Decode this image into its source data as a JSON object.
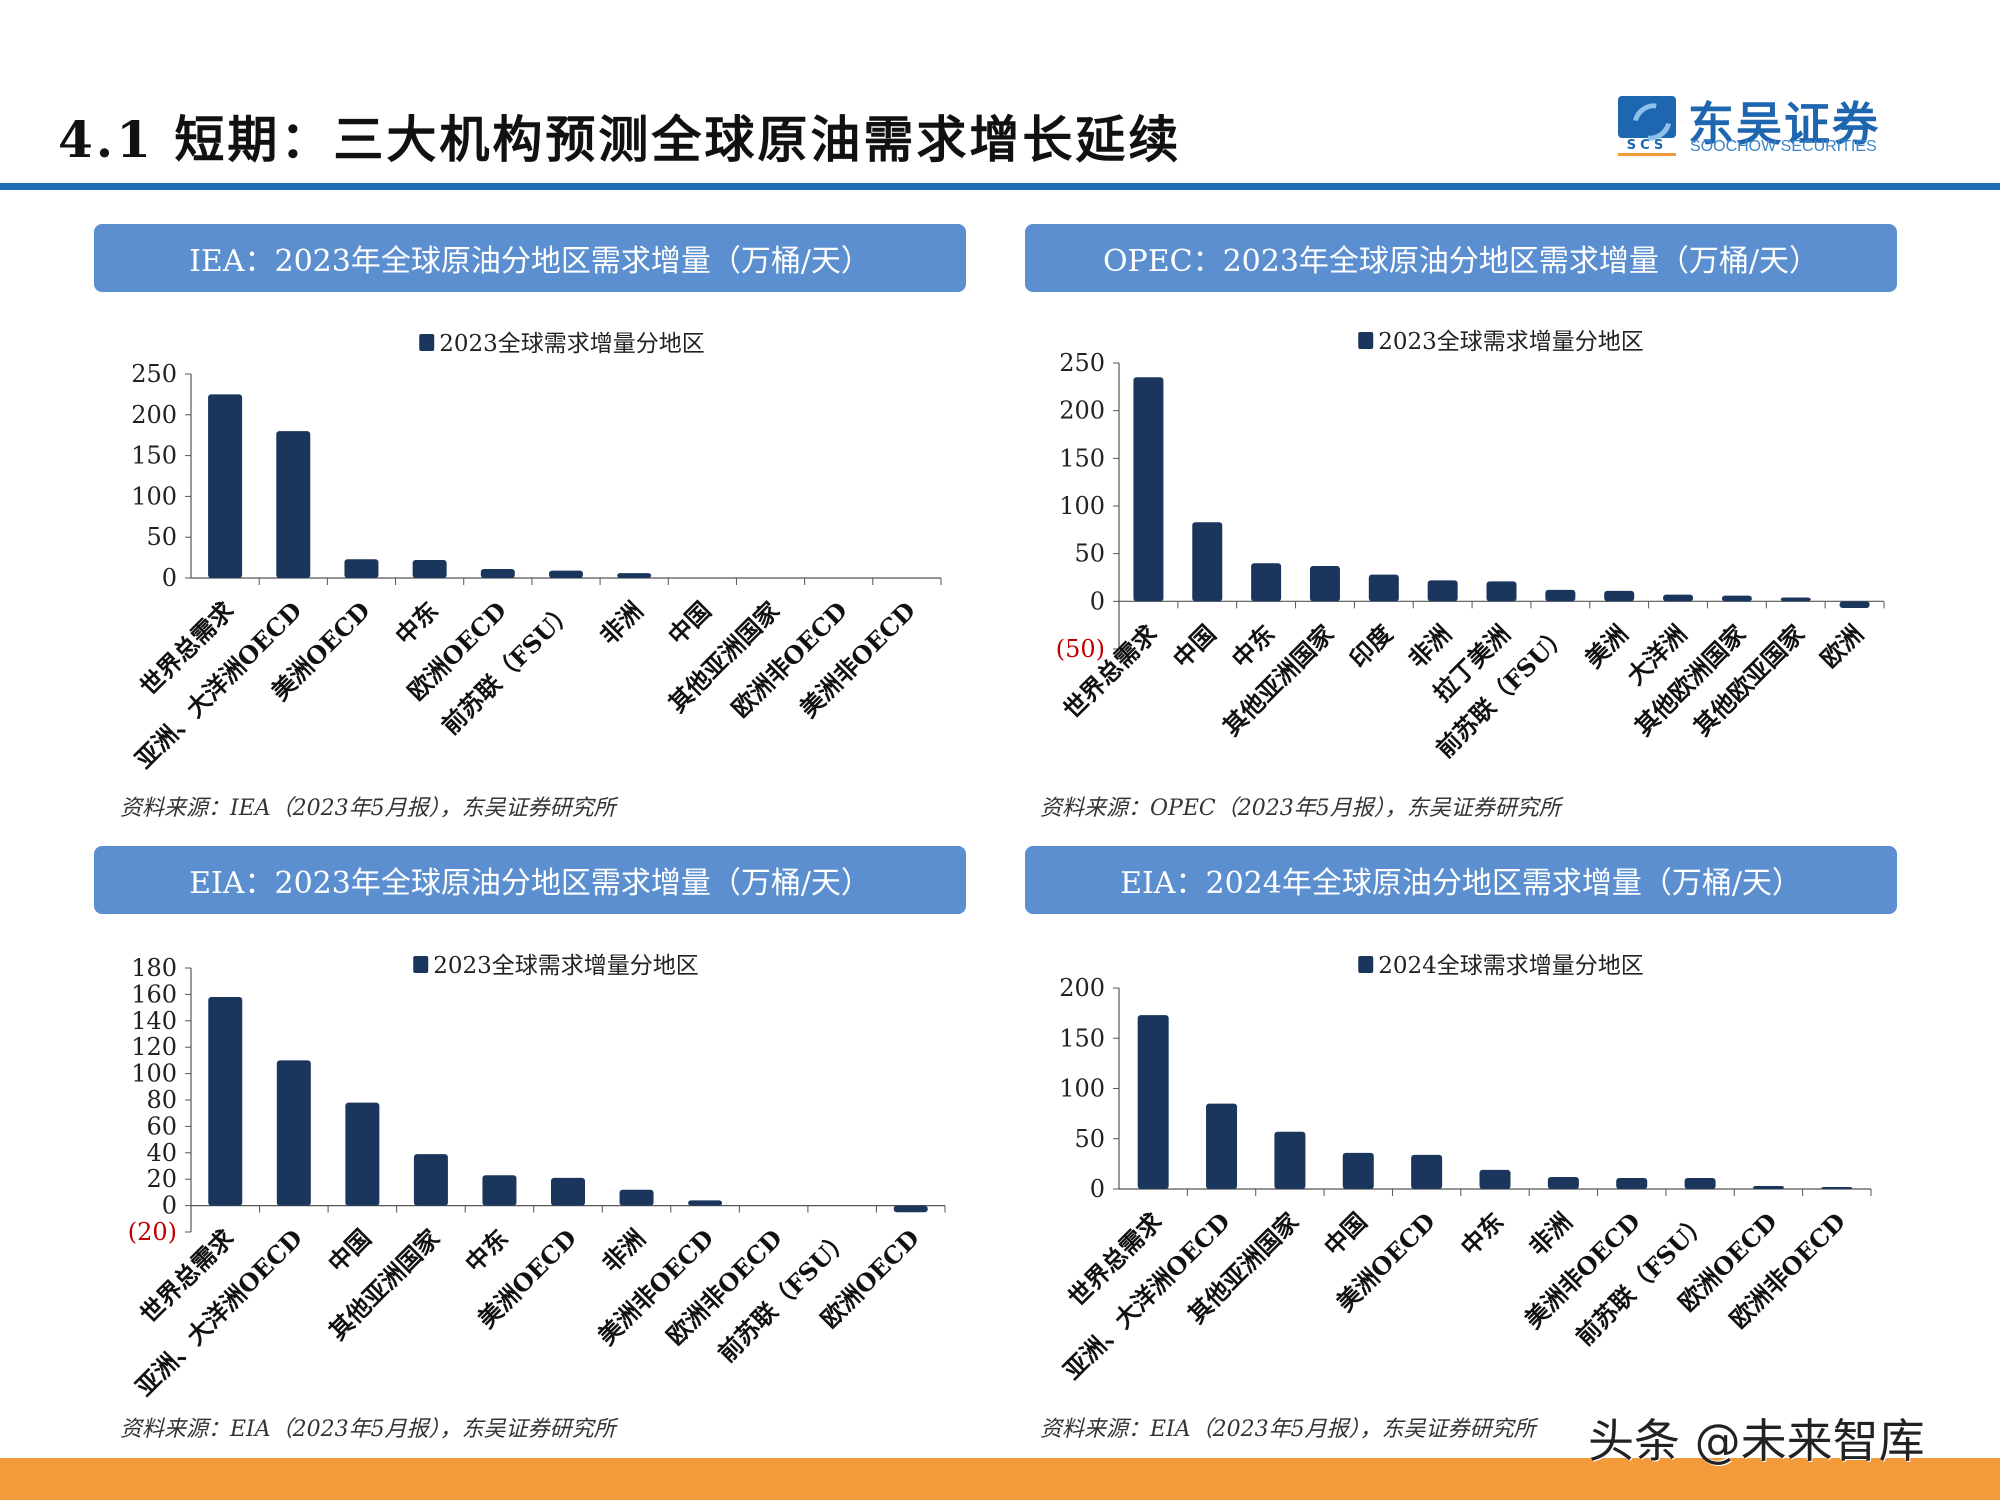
{
  "header": {
    "title": "4.1 短期：三大机构预测全球原油需求增长延续",
    "logo_cn": "东吴证券",
    "logo_en": "SOOCHOW SECURITIES",
    "logo_abbr": "SCS"
  },
  "panels": [
    {
      "title": "IEA：2023年全球原油分地区需求增量（万桶/天）",
      "source": "资料来源：IEA（2023年5月报），东吴证券研究所"
    },
    {
      "title": "OPEC：2023年全球原油分地区需求增量（万桶/天）",
      "source": "资料来源：OPEC（2023年5月报），东吴证券研究所"
    },
    {
      "title": "EIA：2023年全球原油分地区需求增量（万桶/天）",
      "source": "资料来源：EIA（2023年5月报），东吴证券研究所"
    },
    {
      "title": "EIA：2024年全球原油分地区需求增量（万桶/天）",
      "source": "资料来源：EIA（2023年5月报），东吴证券研究所"
    }
  ],
  "watermark": "头条 @未来智库",
  "colors": {
    "bar": "#1b365d",
    "header_panel": "#5b8fd0",
    "accent_line": "#1f6db5",
    "footer": "#f39a3a",
    "negative_tick": "#c00000"
  },
  "chart_data": [
    {
      "type": "bar",
      "legend": "2023全球需求增量分地区",
      "legend_position": "top",
      "ylim": [
        0,
        250
      ],
      "yticks": [
        "0",
        "50",
        "100",
        "150",
        "200",
        "250"
      ],
      "categories": [
        "世界总需求",
        "亚洲、大洋洲OECD",
        "美洲OECD",
        "中东",
        "欧洲OECD",
        "前苏联（FSU）",
        "非洲",
        "中国",
        "其他亚洲国家",
        "欧洲非OECD",
        "美洲非OECD"
      ],
      "values": [
        225,
        180,
        23,
        22,
        11,
        9,
        6,
        0,
        0,
        0,
        0
      ],
      "grid": false
    },
    {
      "type": "bar",
      "legend": "2023全球需求增量分地区",
      "legend_position": "top",
      "ylim": [
        -50,
        250
      ],
      "yticks": [
        "(50)",
        "0",
        "50",
        "100",
        "150",
        "200",
        "250"
      ],
      "categories": [
        "世界总需求",
        "中国",
        "中东",
        "其他亚洲国家",
        "印度",
        "非洲",
        "拉丁美洲",
        "前苏联（FSU）",
        "美洲",
        "大洋洲",
        "其他欧洲国家",
        "其他欧亚国家",
        "欧洲"
      ],
      "values": [
        235,
        83,
        40,
        37,
        28,
        22,
        21,
        12,
        11,
        7,
        6,
        4,
        -7
      ],
      "grid": false
    },
    {
      "type": "bar",
      "legend": "2023全球需求增量分地区",
      "legend_position": "top",
      "ylim": [
        -20,
        180
      ],
      "yticks": [
        "(20)",
        "0",
        "20",
        "40",
        "60",
        "80",
        "100",
        "120",
        "140",
        "160",
        "180"
      ],
      "categories": [
        "世界总需求",
        "亚洲、大洋洲OECD",
        "中国",
        "其他亚洲国家",
        "中东",
        "美洲OECD",
        "非洲",
        "美洲非OECD",
        "欧洲非OECD",
        "前苏联（FSU）",
        "欧洲OECD"
      ],
      "values": [
        158,
        110,
        78,
        39,
        23,
        21,
        12,
        4,
        0,
        0,
        -5
      ],
      "grid": false
    },
    {
      "type": "bar",
      "legend": "2024全球需求增量分地区",
      "legend_position": "top",
      "ylim": [
        0,
        200
      ],
      "yticks": [
        "0",
        "50",
        "100",
        "150",
        "200"
      ],
      "categories": [
        "世界总需求",
        "亚洲、大洋洲OECD",
        "其他亚洲国家",
        "中国",
        "美洲OECD",
        "中东",
        "非洲",
        "美洲非OECD",
        "前苏联（FSU）",
        "欧洲OECD",
        "欧洲非OECD"
      ],
      "values": [
        173,
        85,
        57,
        36,
        34,
        19,
        12,
        11,
        11,
        3,
        2
      ],
      "grid": false
    }
  ]
}
